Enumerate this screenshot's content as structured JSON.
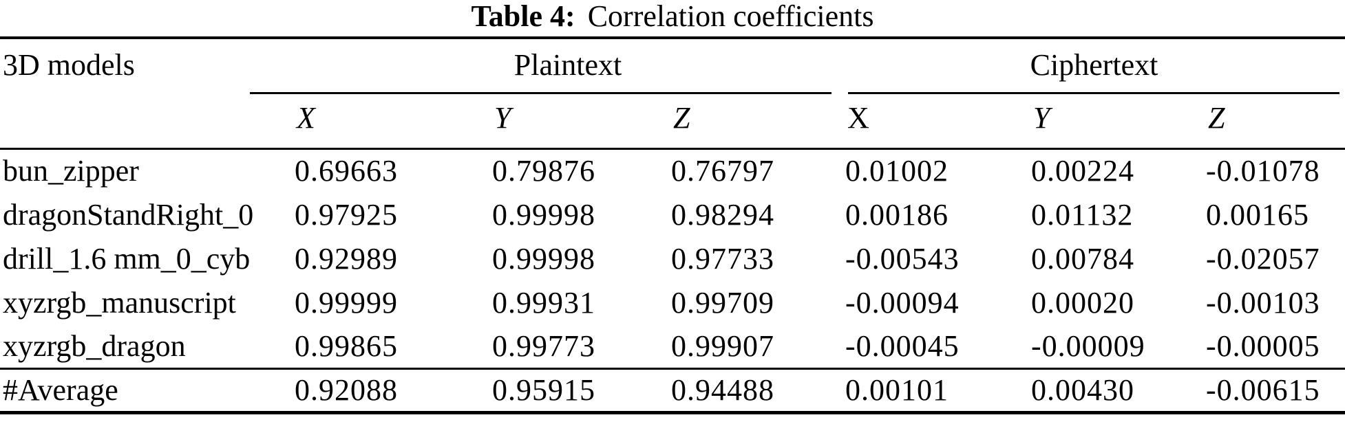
{
  "caption": {
    "label": "Table 4:",
    "text": "Correlation coefficients"
  },
  "header": {
    "stub": "3D models",
    "groups": [
      {
        "label": "Plaintext",
        "cols": [
          "X",
          "Y",
          "Z"
        ]
      },
      {
        "label": "Ciphertext",
        "cols": [
          "X",
          "Y",
          "Z"
        ]
      }
    ]
  },
  "rows": [
    {
      "model": "bun_zipper",
      "values": [
        "0.69663",
        "0.79876",
        "0.76797",
        "0.01002",
        "0.00224",
        "-0.01078"
      ]
    },
    {
      "model": "dragonStandRight_0",
      "values": [
        "0.97925",
        "0.99998",
        "0.98294",
        "0.00186",
        "0.01132",
        "0.00165"
      ]
    },
    {
      "model": "drill_1.6 mm_0_cyb",
      "values": [
        "0.92989",
        "0.99998",
        "0.97733",
        "-0.00543",
        "0.00784",
        "-0.02057"
      ]
    },
    {
      "model": "xyzrgb_manuscript",
      "values": [
        "0.99999",
        "0.99931",
        "0.99709",
        "-0.00094",
        "0.00020",
        "-0.00103"
      ]
    },
    {
      "model": "xyzrgb_dragon",
      "values": [
        "0.99865",
        "0.99773",
        "0.99907",
        "-0.00045",
        "-0.00009",
        "-0.00005"
      ]
    }
  ],
  "footer": {
    "model": "#Average",
    "values": [
      "0.92088",
      "0.95915",
      "0.94488",
      "0.00101",
      "0.00430",
      "-0.00615"
    ]
  },
  "colors": {
    "text": "#000000",
    "background": "#ffffff",
    "rule": "#000000"
  },
  "chart_data": {
    "type": "table",
    "title": "Table 4: Correlation coefficients",
    "row_header": "3D models",
    "column_groups": [
      {
        "label": "Plaintext",
        "columns": [
          "X",
          "Y",
          "Z"
        ]
      },
      {
        "label": "Ciphertext",
        "columns": [
          "X",
          "Y",
          "Z"
        ]
      }
    ],
    "rows": [
      {
        "model": "bun_zipper",
        "plaintext": {
          "X": 0.69663,
          "Y": 0.79876,
          "Z": 0.76797
        },
        "ciphertext": {
          "X": 0.01002,
          "Y": 0.00224,
          "Z": -0.01078
        }
      },
      {
        "model": "dragonStandRight_0",
        "plaintext": {
          "X": 0.97925,
          "Y": 0.99998,
          "Z": 0.98294
        },
        "ciphertext": {
          "X": 0.00186,
          "Y": 0.01132,
          "Z": 0.00165
        }
      },
      {
        "model": "drill_1.6 mm_0_cyb",
        "plaintext": {
          "X": 0.92989,
          "Y": 0.99998,
          "Z": 0.97733
        },
        "ciphertext": {
          "X": -0.00543,
          "Y": 0.00784,
          "Z": -0.02057
        }
      },
      {
        "model": "xyzrgb_manuscript",
        "plaintext": {
          "X": 0.99999,
          "Y": 0.99931,
          "Z": 0.99709
        },
        "ciphertext": {
          "X": -0.00094,
          "Y": 0.0002,
          "Z": -0.00103
        }
      },
      {
        "model": "xyzrgb_dragon",
        "plaintext": {
          "X": 0.99865,
          "Y": 0.99773,
          "Z": 0.99907
        },
        "ciphertext": {
          "X": -0.00045,
          "Y": -9e-05,
          "Z": -5e-05
        }
      }
    ],
    "average": {
      "model": "#Average",
      "plaintext": {
        "X": 0.92088,
        "Y": 0.95915,
        "Z": 0.94488
      },
      "ciphertext": {
        "X": 0.00101,
        "Y": 0.0043,
        "Z": -0.00615
      }
    }
  }
}
